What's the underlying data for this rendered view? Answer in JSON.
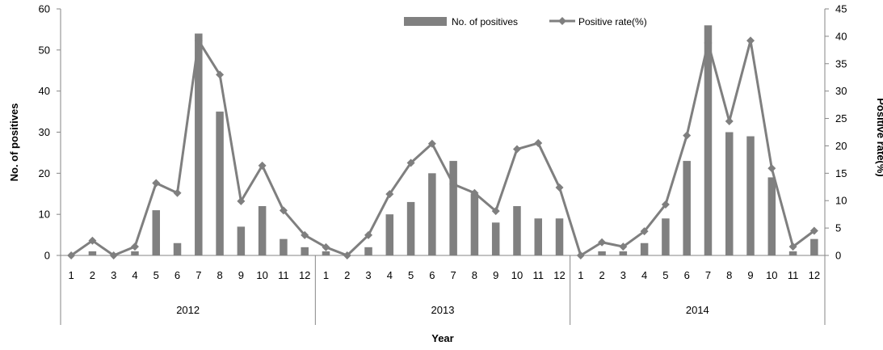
{
  "chart_data": {
    "type": "bar+line",
    "title": "",
    "xlabel": "Year",
    "ylabel_left": "No. of positives",
    "ylabel_right": "Positive rate(%)",
    "ylim_left": [
      0,
      60
    ],
    "ylim_right": [
      0,
      45
    ],
    "yticks_left": [
      "0",
      "10",
      "20",
      "30",
      "40",
      "50",
      "60"
    ],
    "yticks_right": [
      "0",
      "5",
      "10",
      "15",
      "20",
      "25",
      "30",
      "35",
      "40",
      "45"
    ],
    "years": [
      "2012",
      "2013",
      "2014"
    ],
    "months": [
      "1",
      "2",
      "3",
      "4",
      "5",
      "6",
      "7",
      "8",
      "9",
      "10",
      "11",
      "12",
      "1",
      "2",
      "3",
      "4",
      "5",
      "6",
      "7",
      "8",
      "9",
      "10",
      "11",
      "12",
      "1",
      "2",
      "3",
      "4",
      "5",
      "6",
      "7",
      "8",
      "9",
      "10",
      "11",
      "12"
    ],
    "legend_position": "top-right",
    "grid": false,
    "colors": {
      "bar": "#808080",
      "line": "#7f7f7f",
      "axis": "#868686"
    },
    "series": [
      {
        "name": "No. of positives",
        "type": "bar",
        "axis": "left",
        "values": [
          0,
          1,
          0,
          1,
          11,
          3,
          54,
          35,
          7,
          12,
          4,
          2,
          1,
          0,
          2,
          10,
          13,
          20,
          23,
          15,
          8,
          12,
          9,
          9,
          0,
          1,
          1,
          3,
          9,
          23,
          56,
          30,
          29,
          19,
          1,
          4
        ]
      },
      {
        "name": "Positive rate(%)",
        "type": "line",
        "axis": "right",
        "values": [
          0,
          2.7,
          0,
          1.6,
          13.2,
          11.4,
          39.2,
          33,
          9.9,
          16.4,
          8.2,
          3.7,
          1.5,
          0,
          3.7,
          11.2,
          16.9,
          20.4,
          13,
          11.4,
          8.1,
          19.4,
          20.5,
          12.4,
          0,
          2.4,
          1.6,
          4.4,
          9.3,
          21.9,
          38.8,
          24.5,
          39.2,
          15.9,
          1.6,
          4.5
        ]
      }
    ]
  }
}
